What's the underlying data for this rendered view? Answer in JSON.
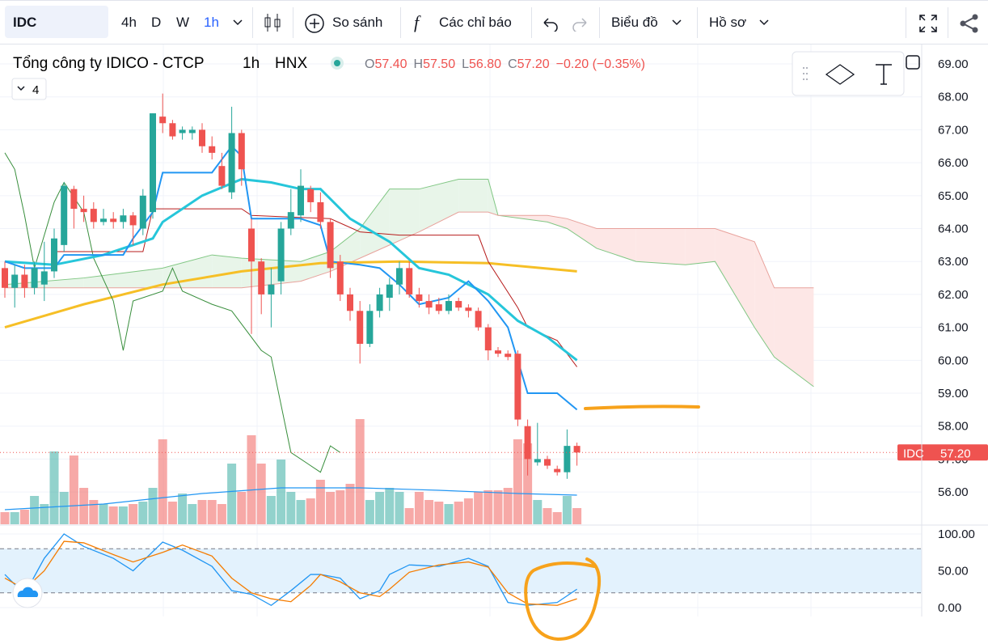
{
  "toolbar": {
    "symbol": "IDC",
    "intervals": [
      "4h",
      "D",
      "W",
      "1h"
    ],
    "compare": "So sánh",
    "indicators": "Các chỉ báo",
    "chart": "Biểu đồ",
    "profile": "Hồ sơ"
  },
  "legend": {
    "name": "Tổng công ty IDICO - CTCP",
    "interval": "1h",
    "exchange": "HNX",
    "open": [
      "O",
      "57.40"
    ],
    "high": [
      "H",
      "57.50"
    ],
    "low": [
      "L",
      "56.80"
    ],
    "close": [
      "C",
      "57.20"
    ],
    "change": "−0.20 (−0.35%)",
    "collapsed": "4"
  },
  "price_tag": {
    "symbol": "IDC",
    "value": "57.20"
  },
  "chart_data": [
    {
      "type": "candlestick",
      "up_color": "#26a69a",
      "down_color": "#ef5350",
      "open": [
        62.8,
        62.2,
        62.6,
        62.2,
        62.3,
        62.7,
        63.5,
        65.2,
        64.6,
        64.6,
        64.2,
        64.3,
        64.2,
        64.4,
        64.0,
        64.5,
        67.4,
        67.2,
        66.9,
        66.9,
        67.0,
        66.5,
        65.9,
        65.1,
        66.9,
        64.0,
        63.0,
        62.0,
        62.4,
        64.0,
        64.4,
        65.2,
        64.8,
        64.2,
        63.0,
        62.0,
        61.5,
        60.5,
        61.5,
        61.9,
        62.3,
        62.8,
        62.0,
        61.8,
        61.7,
        61.5,
        61.8,
        61.6,
        61.5,
        61.0,
        60.3,
        60.2,
        60.2,
        58.0,
        56.9,
        57.0,
        56.7,
        56.6,
        57.4
      ],
      "high": [
        63.0,
        62.9,
        62.9,
        63.0,
        63.6,
        64.0,
        65.4,
        65.3,
        65.0,
        64.8,
        64.6,
        64.5,
        64.6,
        64.5,
        65.2,
        67.5,
        68.1,
        67.3,
        67.1,
        67.1,
        67.2,
        66.8,
        66.3,
        67.7,
        67.0,
        64.3,
        63.1,
        62.8,
        64.2,
        65.2,
        65.8,
        65.3,
        65.1,
        64.3,
        63.2,
        62.2,
        61.8,
        61.7,
        62.2,
        62.5,
        63.0,
        63.0,
        62.2,
        62.0,
        61.9,
        62.0,
        61.9,
        61.7,
        61.6,
        61.1,
        60.4,
        60.3,
        60.3,
        58.2,
        58.1,
        57.1,
        56.8,
        57.9,
        57.5
      ],
      "low": [
        61.9,
        61.6,
        61.9,
        62.0,
        61.8,
        62.5,
        63.3,
        64.0,
        64.2,
        64.0,
        64.1,
        64.0,
        64.0,
        63.5,
        63.8,
        64.3,
        66.9,
        66.7,
        66.7,
        66.7,
        66.3,
        66.1,
        65.2,
        64.9,
        65.3,
        60.8,
        61.4,
        61.0,
        62.0,
        63.8,
        64.2,
        64.5,
        64.0,
        62.5,
        61.8,
        61.2,
        59.9,
        60.4,
        61.3,
        61.5,
        62.0,
        61.9,
        61.6,
        61.4,
        61.4,
        61.4,
        61.5,
        61.3,
        60.9,
        60.0,
        60.1,
        60.0,
        58.0,
        56.5,
        56.8,
        56.7,
        56.5,
        56.4,
        56.8
      ],
      "close": [
        62.2,
        62.6,
        62.2,
        62.8,
        62.7,
        63.7,
        65.3,
        64.6,
        64.5,
        64.2,
        64.3,
        64.2,
        64.4,
        64.1,
        65.0,
        67.5,
        67.2,
        66.8,
        67.0,
        67.0,
        66.5,
        66.3,
        65.3,
        66.9,
        65.8,
        63.0,
        62.0,
        62.3,
        64.0,
        64.5,
        65.3,
        64.8,
        64.2,
        62.8,
        62.0,
        61.5,
        60.5,
        61.5,
        62.0,
        62.3,
        62.8,
        62.0,
        61.8,
        61.6,
        61.5,
        61.8,
        61.6,
        61.5,
        61.0,
        60.3,
        60.2,
        60.1,
        58.2,
        57.0,
        57.0,
        56.8,
        56.6,
        57.4,
        57.2
      ],
      "volume": [
        15,
        15,
        18,
        35,
        25,
        90,
        40,
        85,
        45,
        30,
        25,
        22,
        22,
        25,
        28,
        45,
        105,
        28,
        38,
        25,
        30,
        30,
        25,
        75,
        40,
        110,
        75,
        35,
        80,
        40,
        30,
        32,
        55,
        40,
        42,
        50,
        130,
        30,
        40,
        45,
        40,
        20,
        40,
        30,
        28,
        25,
        28,
        32,
        40,
        42,
        42,
        45,
        105,
        100,
        30,
        20,
        15,
        35,
        20
      ],
      "volume_ma": {
        "color": "#2196f3",
        "x": [
          0,
          10,
          20,
          28,
          36,
          44,
          52,
          58
        ],
        "values": [
          18,
          25,
          38,
          45,
          45,
          42,
          38,
          36
        ]
      },
      "ylim": [
        55.02,
        69.59
      ],
      "yticks": [
        {
          "value": 56,
          "label": "56.00"
        },
        {
          "value": 57,
          "label": "57.00"
        },
        {
          "value": 58,
          "label": "58.00"
        },
        {
          "value": 59,
          "label": "59.00"
        },
        {
          "value": 60,
          "label": "60.00"
        },
        {
          "value": 61,
          "label": "61.00"
        },
        {
          "value": 62,
          "label": "62.00"
        },
        {
          "value": 63,
          "label": "63.00"
        },
        {
          "value": 64,
          "label": "64.00"
        },
        {
          "value": 65,
          "label": "65.00"
        },
        {
          "value": 66,
          "label": "66.00"
        },
        {
          "value": 67,
          "label": "67.00"
        },
        {
          "value": 68,
          "label": "68.00"
        },
        {
          "value": 69,
          "label": "69.00"
        }
      ],
      "last_price": 57.2,
      "cloud": {
        "x": [
          0,
          8,
          16,
          21,
          24,
          30,
          33,
          36,
          39,
          42,
          46,
          49,
          50,
          55,
          57,
          60,
          64,
          69,
          72,
          76,
          78,
          82
        ],
        "span_a": {
          "color": "#81c784",
          "values": [
            62.3,
            62.5,
            62.8,
            63.2,
            63.1,
            63.0,
            63.3,
            64.0,
            65.2,
            65.2,
            65.5,
            65.5,
            64.4,
            64.2,
            64.0,
            63.4,
            63.0,
            62.9,
            63.0,
            61.0,
            60.1,
            59.2
          ]
        },
        "span_b": {
          "color": "#e8a29c",
          "values": [
            62.2,
            62.2,
            62.2,
            62.2,
            62.2,
            62.4,
            62.7,
            63.1,
            63.5,
            63.9,
            64.5,
            64.5,
            64.4,
            64.4,
            64.3,
            64.0,
            64.0,
            64.0,
            64.0,
            63.6,
            62.2,
            62.2
          ]
        },
        "up_fill": "#e8f5e9",
        "down_fill": "#fde7e6"
      },
      "series": [
        {
          "color": "#f6bf26",
          "width": 3,
          "x": [
            0,
            8,
            16,
            24,
            32,
            40,
            49,
            58
          ],
          "values": [
            61.0,
            61.7,
            62.3,
            62.7,
            62.95,
            63.0,
            62.95,
            62.7
          ]
        },
        {
          "color": "#388e3c",
          "width": 1,
          "x": [
            0,
            1,
            2,
            3,
            5,
            6,
            8,
            9,
            11,
            12,
            13,
            16,
            17,
            18,
            21,
            23,
            26,
            27,
            29,
            32,
            33,
            34
          ],
          "values": [
            66.3,
            65.8,
            64.4,
            62.8,
            64.8,
            65.4,
            64.5,
            63.1,
            61.8,
            60.3,
            61.8,
            62.1,
            62.8,
            62.1,
            61.7,
            61.5,
            60.3,
            60.1,
            57.2,
            56.6,
            57.4,
            57.2
          ]
        },
        {
          "color": "#b71c1c",
          "width": 1,
          "x": [
            5,
            14,
            15,
            24,
            25,
            33,
            36,
            40,
            48,
            49,
            52,
            53,
            56,
            58
          ],
          "values": [
            63.3,
            63.3,
            64.6,
            64.6,
            64.4,
            64.3,
            63.9,
            63.8,
            63.8,
            63.0,
            61.6,
            61.0,
            60.6,
            59.8
          ]
        },
        {
          "color": "#26c6da",
          "width": 3,
          "x": [
            0,
            5,
            10,
            15,
            16,
            20,
            24,
            27,
            30,
            32,
            35,
            39,
            42,
            45,
            49,
            52,
            55,
            58
          ],
          "values": [
            63.0,
            62.9,
            63.2,
            63.7,
            64.2,
            65.0,
            65.5,
            65.4,
            65.2,
            65.2,
            64.3,
            63.6,
            62.8,
            62.6,
            62.0,
            61.2,
            60.7,
            60.0
          ]
        },
        {
          "color": "#2196f3",
          "width": 2,
          "x": [
            0,
            2,
            5,
            6,
            12,
            13,
            15,
            16,
            21,
            23,
            24,
            25,
            30,
            32,
            33,
            36,
            38,
            40,
            42,
            45,
            47,
            49,
            51,
            52,
            53,
            56,
            58
          ],
          "values": [
            63.0,
            62.8,
            62.8,
            63.2,
            63.2,
            63.7,
            64.5,
            65.7,
            65.7,
            66.5,
            66.2,
            64.3,
            64.3,
            64.1,
            63.0,
            62.9,
            62.8,
            62.3,
            61.7,
            61.9,
            62.4,
            61.8,
            61.0,
            60.0,
            59.0,
            59.0,
            58.5
          ]
        }
      ]
    },
    {
      "type": "line",
      "ylim": [
        -12.1,
        109.9
      ],
      "yticks": [
        {
          "value": 0,
          "label": "0.00"
        },
        {
          "value": 50,
          "label": "50.00"
        },
        {
          "value": 100,
          "label": "100.00"
        }
      ],
      "bands": [
        20,
        80
      ],
      "band_color": "#e3f2fd",
      "series": [
        {
          "color": "#2196f3",
          "x": [
            0,
            2,
            4,
            6,
            8,
            11,
            13,
            16,
            18,
            21,
            23,
            25,
            27,
            29,
            31,
            32,
            34,
            36,
            38,
            39,
            41,
            44,
            47,
            49,
            51,
            53,
            56,
            58
          ],
          "values": [
            45,
            18,
            67,
            100,
            83,
            67,
            50,
            89,
            78,
            56,
            23,
            18,
            3,
            23,
            45,
            45,
            40,
            12,
            23,
            45,
            58,
            56,
            67,
            56,
            7,
            3,
            7,
            25
          ]
        },
        {
          "color": "#f57c00",
          "x": [
            0,
            2,
            4,
            6,
            8,
            11,
            13,
            16,
            18,
            21,
            23,
            25,
            27,
            29,
            31,
            32,
            34,
            36,
            38,
            39,
            41,
            44,
            47,
            49,
            51,
            53,
            56,
            58
          ],
          "values": [
            40,
            25,
            50,
            90,
            88,
            72,
            62,
            75,
            85,
            70,
            40,
            20,
            12,
            8,
            30,
            45,
            35,
            20,
            15,
            25,
            48,
            58,
            62,
            55,
            20,
            5,
            3,
            12
          ]
        }
      ]
    }
  ]
}
